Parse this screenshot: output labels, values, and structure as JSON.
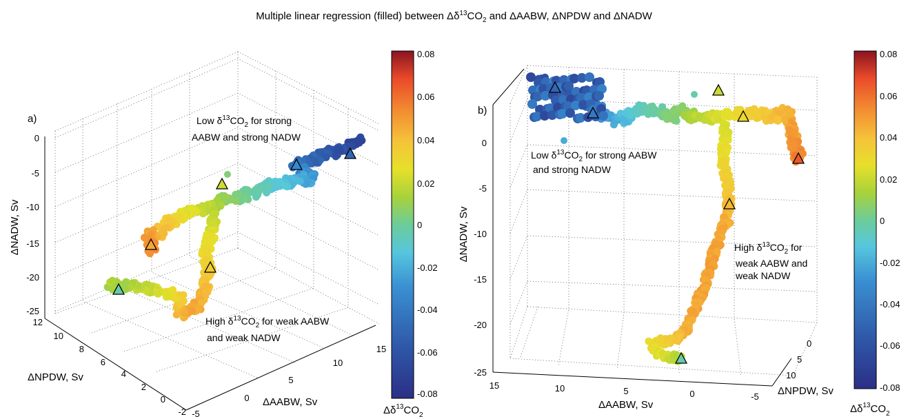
{
  "title": {
    "pre": "Multiple linear regression (filled) between Δδ",
    "sup": "13",
    "mid": "CO",
    "sub": "2",
    "post": " and ΔAABW, ΔNPDW and ΔNADW"
  },
  "chart_data": [
    {
      "type": "scatter",
      "panel_label": "a)",
      "axes": {
        "x": {
          "label": "ΔAABW, Sv",
          "ticks": [
            "-5",
            "0",
            "5",
            "10",
            "15"
          ],
          "range": [
            -5,
            17
          ]
        },
        "y": {
          "label": "ΔNPDW, Sv",
          "ticks": [
            "-2",
            "0",
            "2",
            "4",
            "6",
            "8",
            "10",
            "12"
          ],
          "range": [
            -2,
            12
          ]
        },
        "z": {
          "label": "ΔNADW, Sv",
          "ticks": [
            "-25",
            "-20",
            "-15",
            "-10",
            "-5",
            "0"
          ],
          "range": [
            -25,
            2
          ]
        }
      },
      "annotations": [
        {
          "pre": "Low δ",
          "sup": "13",
          "mid": "CO",
          "sub": "2",
          "post": " for strong",
          "line2": "AABW and strong NADW"
        },
        {
          "pre": "High δ",
          "sup": "13",
          "mid": "CO",
          "sub": "2",
          "post": " for weak AABW",
          "line2": "and weak NADW"
        }
      ],
      "colorbar": {
        "label_pre": "Δδ",
        "sup": "13",
        "label_mid": "CO",
        "sub": "2",
        "ticks": [
          "0.08",
          "0.06",
          "0.04",
          "0.02",
          "0",
          "-0.02",
          "-0.04",
          "-0.06",
          "-0.08"
        ],
        "range": [
          -0.08,
          0.08
        ]
      },
      "grid": true
    },
    {
      "type": "scatter",
      "panel_label": "b)",
      "axes": {
        "x": {
          "label": "ΔAABW, Sv",
          "ticks": [
            "15",
            "10",
            "5",
            "0",
            "-5"
          ],
          "range": [
            -7,
            17
          ]
        },
        "y": {
          "label": "ΔNPDW, Sv",
          "ticks": [
            "0",
            "5",
            "10"
          ],
          "range": [
            -2,
            12
          ]
        },
        "z": {
          "label": "ΔNADW, Sv",
          "ticks": [
            "0",
            "-5",
            "-10",
            "-15",
            "-20",
            "-25"
          ],
          "range": [
            -25,
            2
          ]
        }
      },
      "annotations": [
        {
          "pre": "Low δ",
          "sup": "13",
          "mid": "CO",
          "sub": "2",
          "post": " for strong AABW",
          "line2": "and strong NADW"
        },
        {
          "pre": "High δ",
          "sup": "13",
          "mid": "CO",
          "sub": "2",
          "post": " for",
          "line2": "weak AABW and",
          "line3": "weak NADW"
        }
      ],
      "colorbar": {
        "label_pre": "Δδ",
        "sup": "13",
        "label_mid": "CO",
        "sub": "2",
        "ticks": [
          "0.08",
          "0.06",
          "0.04",
          "0.02",
          "0",
          "-0.02",
          "-0.04",
          "-0.06",
          "-0.08"
        ],
        "range": [
          -0.08,
          0.08
        ]
      },
      "grid": true
    }
  ],
  "trajectory": {
    "note_values": "Δδ13CO2 values along the plotted path (colour-coded)",
    "a_path": [
      [
        525,
        203,
        -0.07
      ],
      [
        510,
        210,
        -0.07
      ],
      [
        495,
        218,
        -0.068
      ],
      [
        480,
        223,
        -0.065
      ],
      [
        465,
        228,
        -0.063
      ],
      [
        450,
        233,
        -0.06
      ],
      [
        440,
        237,
        -0.058
      ],
      [
        430,
        240,
        -0.056
      ],
      [
        445,
        250,
        -0.05
      ],
      [
        455,
        258,
        -0.045
      ],
      [
        440,
        262,
        -0.04
      ],
      [
        420,
        265,
        -0.035
      ],
      [
        400,
        268,
        -0.03
      ],
      [
        385,
        272,
        -0.025
      ],
      [
        370,
        278,
        -0.02
      ],
      [
        355,
        283,
        -0.015
      ],
      [
        340,
        287,
        -0.01
      ],
      [
        325,
        290,
        -0.006
      ],
      [
        312,
        297,
        0
      ],
      [
        300,
        303,
        0.005
      ],
      [
        285,
        305,
        0.01
      ],
      [
        270,
        310,
        0.015
      ],
      [
        258,
        315,
        0.02
      ],
      [
        248,
        322,
        0.025
      ],
      [
        240,
        330,
        0.03
      ],
      [
        232,
        337,
        0.035
      ],
      [
        222,
        340,
        0.04
      ],
      [
        215,
        345,
        0.043
      ],
      [
        218,
        355,
        0.046
      ],
      [
        222,
        363,
        0.048
      ]
    ],
    "a_branch": [
      [
        312,
        310,
        0.005
      ],
      [
        308,
        325,
        0.01
      ],
      [
        306,
        340,
        0.015
      ],
      [
        303,
        355,
        0.018
      ],
      [
        298,
        368,
        0.02
      ],
      [
        300,
        380,
        0.023
      ],
      [
        303,
        390,
        0.026
      ],
      [
        300,
        402,
        0.03
      ],
      [
        298,
        415,
        0.033
      ],
      [
        293,
        430,
        0.036
      ],
      [
        290,
        440,
        0.038
      ],
      [
        282,
        448,
        0.04
      ],
      [
        272,
        455,
        0.04
      ],
      [
        262,
        458,
        0.038
      ],
      [
        262,
        446,
        0.035
      ],
      [
        262,
        435,
        0.03
      ],
      [
        250,
        428,
        0.022
      ],
      [
        238,
        425,
        0.016
      ],
      [
        225,
        421,
        0.012
      ],
      [
        210,
        418,
        0.008
      ],
      [
        195,
        416,
        0.004
      ],
      [
        182,
        414,
        0.0
      ],
      [
        170,
        418,
        -0.005
      ],
      [
        160,
        412,
        0.002
      ]
    ],
    "b_path": [
      [
        785,
        115,
        -0.068
      ],
      [
        795,
        125,
        -0.066
      ],
      [
        810,
        133,
        -0.064
      ],
      [
        825,
        138,
        -0.062
      ],
      [
        840,
        145,
        -0.06
      ],
      [
        855,
        152,
        -0.058
      ],
      [
        870,
        160,
        -0.05
      ],
      [
        880,
        170,
        -0.045
      ],
      [
        895,
        175,
        -0.04
      ],
      [
        910,
        170,
        -0.033
      ],
      [
        925,
        160,
        -0.026
      ],
      [
        945,
        158,
        -0.02
      ],
      [
        960,
        165,
        -0.015
      ],
      [
        975,
        170,
        -0.01
      ],
      [
        990,
        160,
        -0.006
      ],
      [
        1005,
        170,
        0
      ],
      [
        1020,
        172,
        0.006
      ],
      [
        1035,
        170,
        0.01
      ],
      [
        1052,
        168,
        0.015
      ],
      [
        1070,
        165,
        0.02
      ],
      [
        1085,
        163,
        0.024
      ],
      [
        1100,
        165,
        0.028
      ],
      [
        1115,
        170,
        0.03
      ],
      [
        1130,
        168,
        0.033
      ],
      [
        1140,
        160,
        0.035
      ],
      [
        1148,
        180,
        0.04
      ],
      [
        1152,
        200,
        0.044
      ],
      [
        1155,
        215,
        0.048
      ],
      [
        1160,
        232,
        0.05
      ]
    ],
    "b_branch": [
      [
        1052,
        180,
        0.012
      ],
      [
        1052,
        200,
        0.015
      ],
      [
        1050,
        220,
        0.018
      ],
      [
        1050,
        240,
        0.022
      ],
      [
        1054,
        260,
        0.026
      ],
      [
        1057,
        280,
        0.03
      ],
      [
        1056,
        300,
        0.034
      ],
      [
        1054,
        320,
        0.038
      ],
      [
        1045,
        340,
        0.04
      ],
      [
        1038,
        360,
        0.041
      ],
      [
        1032,
        380,
        0.042
      ],
      [
        1026,
        400,
        0.042
      ],
      [
        1020,
        420,
        0.041
      ],
      [
        1012,
        440,
        0.04
      ],
      [
        1002,
        460,
        0.04
      ],
      [
        995,
        480,
        0.038
      ],
      [
        980,
        492,
        0.032
      ],
      [
        960,
        496,
        0.025
      ],
      [
        945,
        500,
        0.02
      ],
      [
        955,
        512,
        0.015
      ],
      [
        970,
        518,
        0.01
      ],
      [
        988,
        520,
        0.004
      ]
    ],
    "triangles_a": [
      [
        508,
        224,
        -0.06
      ],
      [
        430,
        240,
        -0.05
      ],
      [
        322,
        268,
        0.01
      ],
      [
        219,
        356,
        0.04
      ],
      [
        305,
        389,
        0.026
      ],
      [
        172,
        421,
        -0.02
      ]
    ],
    "triangles_b": [
      [
        805,
        128,
        -0.06
      ],
      [
        860,
        165,
        -0.055
      ],
      [
        1042,
        132,
        0.01
      ],
      [
        1078,
        170,
        0.02
      ],
      [
        1158,
        231,
        0.06
      ],
      [
        1058,
        297,
        0.035
      ],
      [
        988,
        521,
        -0.02
      ]
    ],
    "dots_a": [
      [
        330,
        253,
        -0.01
      ]
    ],
    "dots_b": [
      [
        1007,
        137,
        -0.02
      ],
      [
        818,
        204,
        -0.04
      ]
    ]
  },
  "colors": {
    "palette": [
      "#2b2f86",
      "#2f58a8",
      "#3a8fd2",
      "#56c6de",
      "#6ccc9a",
      "#a8d23a",
      "#e6e02a",
      "#f5c33a",
      "#f28b31",
      "#ea4a2a",
      "#b0202a"
    ]
  }
}
